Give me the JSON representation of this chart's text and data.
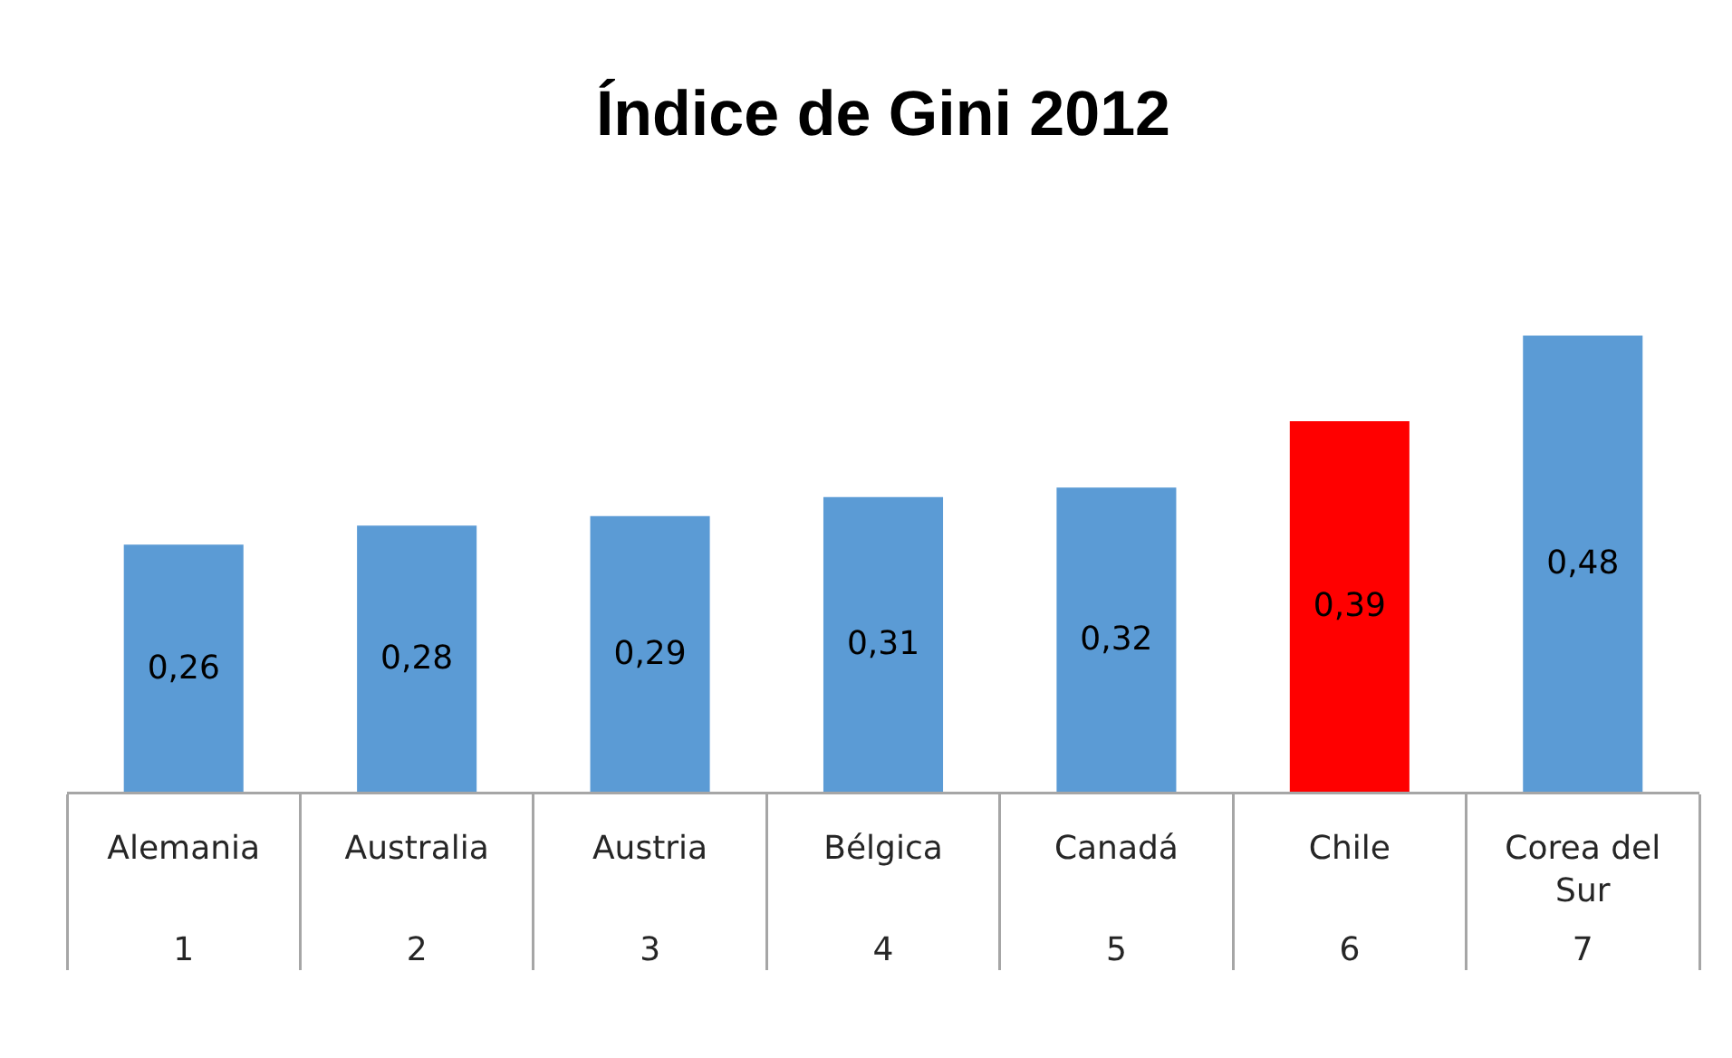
{
  "chart_data": {
    "type": "bar",
    "title": "Índice de Gini 2012",
    "categories": [
      "Alemania\n1",
      "Australia\n2",
      "Austria\n3",
      "Bélgica\n4",
      "Canadá\n5",
      "Chile\n6",
      "Corea del Sur\n7"
    ],
    "values": [
      0.26,
      0.28,
      0.29,
      0.31,
      0.32,
      0.39,
      0.48
    ],
    "colors": [
      "#5b9bd5",
      "#5b9bd5",
      "#5b9bd5",
      "#5b9bd5",
      "#5b9bd5",
      "#ff0000",
      "#5b9bd5"
    ],
    "value_labels": [
      "0,26",
      "0,28",
      "0,29",
      "0,31",
      "0,32",
      "0,39",
      "0,48"
    ]
  }
}
